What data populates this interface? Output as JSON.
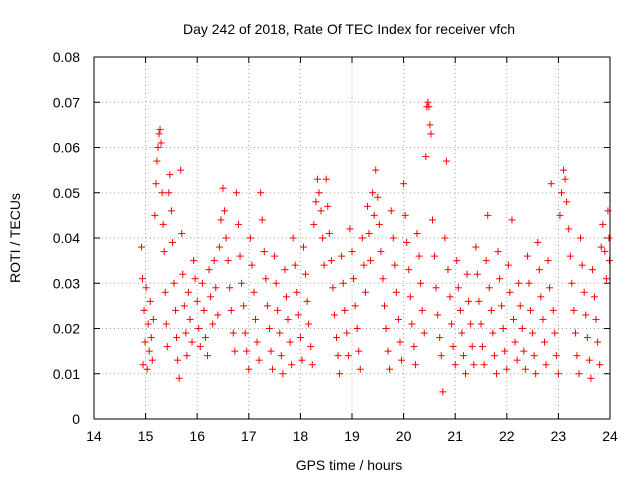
{
  "chart_data": {
    "type": "scatter",
    "title": "Day 242 of 2018, Rate Of TEC Index for receiver vfch",
    "xlabel": "GPS time / hours",
    "ylabel": "ROTI / TECUs",
    "xlim": [
      14,
      24
    ],
    "ylim": [
      0,
      0.08
    ],
    "grid": true,
    "marker": "+",
    "color": "#ff0000",
    "x_ticks": [
      "14",
      "15",
      "16",
      "17",
      "18",
      "19",
      "20",
      "21",
      "22",
      "23",
      "24"
    ],
    "y_ticks": [
      "0",
      "0.01",
      "0.02",
      "0.03",
      "0.04",
      "0.05",
      "0.06",
      "0.07",
      "0.08"
    ],
    "x_tick_values": [
      14,
      15,
      16,
      17,
      18,
      19,
      20,
      21,
      22,
      23,
      24
    ],
    "y_tick_values": [
      0,
      0.01,
      0.02,
      0.03,
      0.04,
      0.05,
      0.06,
      0.07,
      0.08
    ],
    "series": [
      {
        "name": "ROTI",
        "points": [
          [
            14.92,
            0.038
          ],
          [
            14.94,
            0.031
          ],
          [
            14.95,
            0.012
          ],
          [
            14.97,
            0.024
          ],
          [
            14.99,
            0.017
          ],
          [
            15.01,
            0.029
          ],
          [
            15.03,
            0.011
          ],
          [
            15.05,
            0.021
          ],
          [
            15.07,
            0.015
          ],
          [
            15.09,
            0.026
          ],
          [
            15.11,
            0.018
          ],
          [
            15.13,
            0.013
          ],
          [
            15.15,
            0.022
          ],
          [
            15.18,
            0.045
          ],
          [
            15.2,
            0.052
          ],
          [
            15.22,
            0.057
          ],
          [
            15.24,
            0.06
          ],
          [
            15.26,
            0.063
          ],
          [
            15.28,
            0.064
          ],
          [
            15.3,
            0.061
          ],
          [
            15.32,
            0.05
          ],
          [
            15.34,
            0.043
          ],
          [
            15.36,
            0.037
          ],
          [
            15.38,
            0.028
          ],
          [
            15.4,
            0.021
          ],
          [
            15.42,
            0.016
          ],
          [
            15.45,
            0.05
          ],
          [
            15.47,
            0.054
          ],
          [
            15.5,
            0.046
          ],
          [
            15.52,
            0.039
          ],
          [
            15.55,
            0.03
          ],
          [
            15.58,
            0.024
          ],
          [
            15.6,
            0.018
          ],
          [
            15.62,
            0.013
          ],
          [
            15.65,
            0.009
          ],
          [
            15.68,
            0.055
          ],
          [
            15.7,
            0.041
          ],
          [
            15.72,
            0.032
          ],
          [
            15.75,
            0.025
          ],
          [
            15.78,
            0.019
          ],
          [
            15.8,
            0.014
          ],
          [
            15.83,
            0.028
          ],
          [
            15.86,
            0.022
          ],
          [
            15.9,
            0.017
          ],
          [
            15.93,
            0.035
          ],
          [
            15.96,
            0.031
          ],
          [
            16.0,
            0.026
          ],
          [
            16.03,
            0.02
          ],
          [
            16.06,
            0.016
          ],
          [
            16.1,
            0.03
          ],
          [
            16.13,
            0.024
          ],
          [
            16.16,
            0.018
          ],
          [
            16.2,
            0.014
          ],
          [
            16.23,
            0.033
          ],
          [
            16.26,
            0.027
          ],
          [
            16.3,
            0.021
          ],
          [
            16.33,
            0.035
          ],
          [
            16.36,
            0.029
          ],
          [
            16.4,
            0.023
          ],
          [
            16.43,
            0.038
          ],
          [
            16.46,
            0.044
          ],
          [
            16.5,
            0.051
          ],
          [
            16.53,
            0.046
          ],
          [
            16.56,
            0.04
          ],
          [
            16.6,
            0.035
          ],
          [
            16.63,
            0.029
          ],
          [
            16.66,
            0.024
          ],
          [
            16.7,
            0.019
          ],
          [
            16.73,
            0.015
          ],
          [
            16.76,
            0.05
          ],
          [
            16.8,
            0.043
          ],
          [
            16.83,
            0.036
          ],
          [
            16.86,
            0.03
          ],
          [
            16.9,
            0.025
          ],
          [
            16.93,
            0.019
          ],
          [
            16.96,
            0.015
          ],
          [
            17.0,
            0.011
          ],
          [
            17.03,
            0.04
          ],
          [
            17.06,
            0.034
          ],
          [
            17.1,
            0.028
          ],
          [
            17.13,
            0.022
          ],
          [
            17.16,
            0.017
          ],
          [
            17.2,
            0.013
          ],
          [
            17.23,
            0.05
          ],
          [
            17.26,
            0.044
          ],
          [
            17.3,
            0.037
          ],
          [
            17.33,
            0.031
          ],
          [
            17.36,
            0.025
          ],
          [
            17.4,
            0.02
          ],
          [
            17.43,
            0.015
          ],
          [
            17.46,
            0.011
          ],
          [
            17.5,
            0.036
          ],
          [
            17.53,
            0.03
          ],
          [
            17.56,
            0.024
          ],
          [
            17.6,
            0.019
          ],
          [
            17.63,
            0.014
          ],
          [
            17.66,
            0.01
          ],
          [
            17.7,
            0.033
          ],
          [
            17.73,
            0.027
          ],
          [
            17.76,
            0.022
          ],
          [
            17.8,
            0.017
          ],
          [
            17.83,
            0.012
          ],
          [
            17.86,
            0.04
          ],
          [
            17.9,
            0.034
          ],
          [
            17.93,
            0.028
          ],
          [
            17.96,
            0.023
          ],
          [
            18.0,
            0.018
          ],
          [
            18.03,
            0.013
          ],
          [
            18.06,
            0.038
          ],
          [
            18.1,
            0.032
          ],
          [
            18.13,
            0.026
          ],
          [
            18.16,
            0.021
          ],
          [
            18.2,
            0.016
          ],
          [
            18.23,
            0.012
          ],
          [
            18.26,
            0.043
          ],
          [
            18.3,
            0.048
          ],
          [
            18.33,
            0.053
          ],
          [
            18.36,
            0.05
          ],
          [
            18.4,
            0.046
          ],
          [
            18.43,
            0.04
          ],
          [
            18.46,
            0.034
          ],
          [
            18.5,
            0.053
          ],
          [
            18.53,
            0.047
          ],
          [
            18.56,
            0.041
          ],
          [
            18.6,
            0.035
          ],
          [
            18.63,
            0.029
          ],
          [
            18.66,
            0.023
          ],
          [
            18.7,
            0.018
          ],
          [
            18.73,
            0.014
          ],
          [
            18.76,
            0.01
          ],
          [
            18.8,
            0.036
          ],
          [
            18.83,
            0.03
          ],
          [
            18.86,
            0.024
          ],
          [
            18.9,
            0.019
          ],
          [
            18.93,
            0.014
          ],
          [
            18.96,
            0.042
          ],
          [
            19.0,
            0.037
          ],
          [
            19.03,
            0.031
          ],
          [
            19.06,
            0.025
          ],
          [
            19.1,
            0.02
          ],
          [
            19.13,
            0.015
          ],
          [
            19.16,
            0.011
          ],
          [
            19.2,
            0.04
          ],
          [
            19.23,
            0.034
          ],
          [
            19.26,
            0.028
          ],
          [
            19.3,
            0.047
          ],
          [
            19.33,
            0.041
          ],
          [
            19.36,
            0.035
          ],
          [
            19.4,
            0.05
          ],
          [
            19.43,
            0.045
          ],
          [
            19.46,
            0.055
          ],
          [
            19.5,
            0.049
          ],
          [
            19.53,
            0.043
          ],
          [
            19.56,
            0.037
          ],
          [
            19.6,
            0.031
          ],
          [
            19.63,
            0.025
          ],
          [
            19.66,
            0.02
          ],
          [
            19.7,
            0.015
          ],
          [
            19.73,
            0.011
          ],
          [
            19.76,
            0.046
          ],
          [
            19.8,
            0.04
          ],
          [
            19.83,
            0.034
          ],
          [
            19.86,
            0.028
          ],
          [
            19.9,
            0.022
          ],
          [
            19.93,
            0.017
          ],
          [
            19.96,
            0.013
          ],
          [
            20.0,
            0.052
          ],
          [
            20.03,
            0.045
          ],
          [
            20.06,
            0.039
          ],
          [
            20.1,
            0.033
          ],
          [
            20.13,
            0.027
          ],
          [
            20.16,
            0.021
          ],
          [
            20.2,
            0.016
          ],
          [
            20.23,
            0.012
          ],
          [
            20.26,
            0.041
          ],
          [
            20.3,
            0.036
          ],
          [
            20.33,
            0.03
          ],
          [
            20.36,
            0.024
          ],
          [
            20.4,
            0.019
          ],
          [
            20.43,
            0.058
          ],
          [
            20.45,
            0.069
          ],
          [
            20.47,
            0.07
          ],
          [
            20.49,
            0.069
          ],
          [
            20.51,
            0.065
          ],
          [
            20.53,
            0.063
          ],
          [
            20.56,
            0.044
          ],
          [
            20.6,
            0.036
          ],
          [
            20.63,
            0.029
          ],
          [
            20.66,
            0.023
          ],
          [
            20.7,
            0.018
          ],
          [
            20.73,
            0.014
          ],
          [
            20.76,
            0.006
          ],
          [
            20.8,
            0.04
          ],
          [
            20.83,
            0.057
          ],
          [
            20.86,
            0.033
          ],
          [
            20.9,
            0.027
          ],
          [
            20.93,
            0.021
          ],
          [
            20.96,
            0.016
          ],
          [
            21.0,
            0.012
          ],
          [
            21.03,
            0.035
          ],
          [
            21.06,
            0.029
          ],
          [
            21.1,
            0.024
          ],
          [
            21.13,
            0.019
          ],
          [
            21.16,
            0.014
          ],
          [
            21.2,
            0.01
          ],
          [
            21.23,
            0.032
          ],
          [
            21.26,
            0.026
          ],
          [
            21.3,
            0.021
          ],
          [
            21.33,
            0.016
          ],
          [
            21.36,
            0.012
          ],
          [
            21.4,
            0.038
          ],
          [
            21.43,
            0.032
          ],
          [
            21.46,
            0.026
          ],
          [
            21.5,
            0.021
          ],
          [
            21.53,
            0.016
          ],
          [
            21.56,
            0.012
          ],
          [
            21.6,
            0.035
          ],
          [
            21.63,
            0.045
          ],
          [
            21.66,
            0.029
          ],
          [
            21.7,
            0.024
          ],
          [
            21.73,
            0.019
          ],
          [
            21.76,
            0.014
          ],
          [
            21.8,
            0.01
          ],
          [
            21.83,
            0.037
          ],
          [
            21.86,
            0.031
          ],
          [
            21.9,
            0.025
          ],
          [
            21.93,
            0.02
          ],
          [
            21.96,
            0.015
          ],
          [
            22.0,
            0.011
          ],
          [
            22.03,
            0.034
          ],
          [
            22.06,
            0.028
          ],
          [
            22.1,
            0.044
          ],
          [
            22.13,
            0.022
          ],
          [
            22.16,
            0.017
          ],
          [
            22.2,
            0.013
          ],
          [
            22.23,
            0.03
          ],
          [
            22.26,
            0.025
          ],
          [
            22.3,
            0.02
          ],
          [
            22.33,
            0.015
          ],
          [
            22.36,
            0.011
          ],
          [
            22.4,
            0.036
          ],
          [
            22.43,
            0.03
          ],
          [
            22.46,
            0.024
          ],
          [
            22.5,
            0.019
          ],
          [
            22.53,
            0.014
          ],
          [
            22.56,
            0.01
          ],
          [
            22.6,
            0.039
          ],
          [
            22.63,
            0.033
          ],
          [
            22.66,
            0.027
          ],
          [
            22.7,
            0.022
          ],
          [
            22.73,
            0.017
          ],
          [
            22.76,
            0.012
          ],
          [
            22.8,
            0.035
          ],
          [
            22.83,
            0.029
          ],
          [
            22.86,
            0.052
          ],
          [
            22.9,
            0.024
          ],
          [
            22.93,
            0.019
          ],
          [
            22.96,
            0.014
          ],
          [
            23.0,
            0.01
          ],
          [
            23.03,
            0.045
          ],
          [
            23.06,
            0.05
          ],
          [
            23.1,
            0.055
          ],
          [
            23.13,
            0.053
          ],
          [
            23.16,
            0.048
          ],
          [
            23.2,
            0.042
          ],
          [
            23.23,
            0.036
          ],
          [
            23.26,
            0.03
          ],
          [
            23.3,
            0.024
          ],
          [
            23.33,
            0.019
          ],
          [
            23.36,
            0.014
          ],
          [
            23.4,
            0.01
          ],
          [
            23.43,
            0.04
          ],
          [
            23.46,
            0.034
          ],
          [
            23.5,
            0.028
          ],
          [
            23.53,
            0.023
          ],
          [
            23.56,
            0.018
          ],
          [
            23.6,
            0.013
          ],
          [
            23.63,
            0.009
          ],
          [
            23.66,
            0.033
          ],
          [
            23.7,
            0.027
          ],
          [
            23.73,
            0.022
          ],
          [
            23.76,
            0.017
          ],
          [
            23.8,
            0.012
          ],
          [
            23.83,
            0.038
          ],
          [
            23.86,
            0.043
          ],
          [
            23.9,
            0.037
          ],
          [
            23.93,
            0.031
          ],
          [
            23.96,
            0.046
          ],
          [
            23.98,
            0.04
          ],
          [
            23.99,
            0.035
          ]
        ]
      }
    ]
  }
}
